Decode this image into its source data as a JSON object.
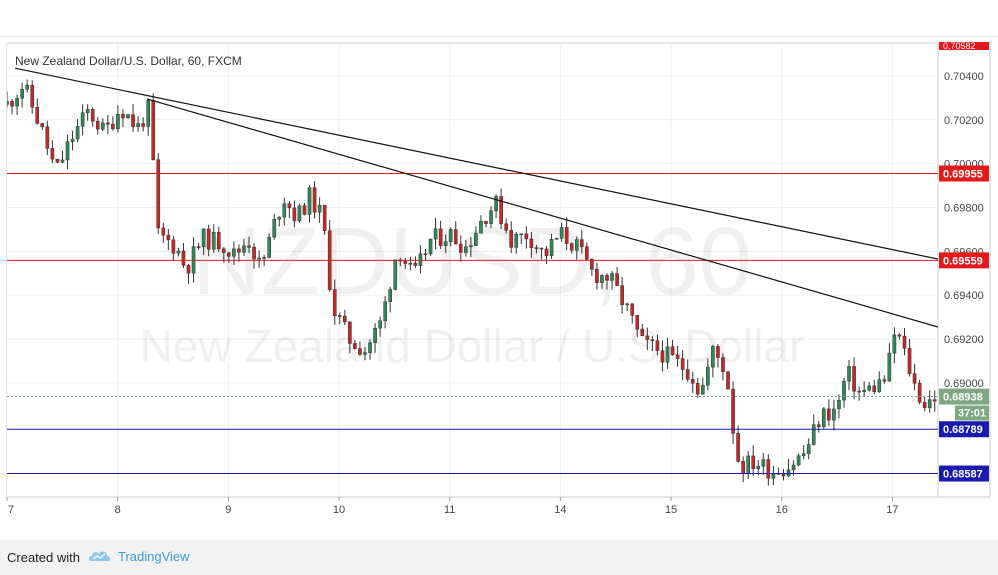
{
  "header": {
    "symbol_title": "New Zealand Dollar/U.S. Dollar, 60, FXCM"
  },
  "watermark": {
    "ticker": "NZDUSD, 60",
    "name": "New Zealand Dollar / U.S. Dollar"
  },
  "footer": {
    "created_with": "Created with",
    "brand": "TradingView",
    "brand_icon": "tradingview-cloud-icon",
    "brand_color": "#3a9bd6"
  },
  "chart_data": {
    "type": "candlestick",
    "title": "New Zealand Dollar/U.S. Dollar, 60, FXCM",
    "ylim": [
      0.6848,
      0.7055
    ],
    "xlim": [
      0,
      28.6
    ],
    "y_ticks": [
      "0.70400",
      "0.70200",
      "0.70000",
      "0.69800",
      "0.69600",
      "0.69400",
      "0.69200",
      "0.69000"
    ],
    "x_ticks": [
      {
        "x": 0,
        "label": "7"
      },
      {
        "x": 3.4,
        "label": "8"
      },
      {
        "x": 6.8,
        "label": "9"
      },
      {
        "x": 10.2,
        "label": "10"
      },
      {
        "x": 13.6,
        "label": "11"
      },
      {
        "x": 17.0,
        "label": "14"
      },
      {
        "x": 20.4,
        "label": "15"
      },
      {
        "x": 23.8,
        "label": "16"
      },
      {
        "x": 27.2,
        "label": "17"
      }
    ],
    "top_price_label": "0.70582",
    "horizontal_lines": [
      {
        "price": 0.69955,
        "label": "0.69955",
        "color": "#e31a1c"
      },
      {
        "price": 0.69559,
        "label": "0.69559",
        "color": "#e31a1c"
      },
      {
        "price": 0.68789,
        "label": "0.68789",
        "color": "#1a1ab0"
      },
      {
        "price": 0.68587,
        "label": "0.68587",
        "color": "#1a1ab0"
      }
    ],
    "current_price": {
      "price": 0.68938,
      "label": "0.68938",
      "countdown": "37:01",
      "color": "#7fa882"
    },
    "trendlines": [
      {
        "x1": 0.25,
        "y1": 0.70435,
        "x2": 28.6,
        "y2": 0.69565
      },
      {
        "x1": 4.3,
        "y1": 0.70295,
        "x2": 28.6,
        "y2": 0.69255
      }
    ],
    "candle_colors": {
      "up": "#2e8b57",
      "down": "#c62828"
    },
    "path": [
      [
        0.0,
        0.7027
      ],
      [
        0.5,
        0.7036
      ],
      [
        1.0,
        0.7018
      ],
      [
        1.5,
        0.6996
      ],
      [
        2.0,
        0.7012
      ],
      [
        2.5,
        0.7024
      ],
      [
        3.0,
        0.7014
      ],
      [
        3.5,
        0.7026
      ],
      [
        4.0,
        0.7016
      ],
      [
        4.4,
        0.7026
      ],
      [
        4.6,
        0.6968
      ],
      [
        5.2,
        0.6962
      ],
      [
        5.5,
        0.6952
      ],
      [
        6.0,
        0.6966
      ],
      [
        6.6,
        0.6964
      ],
      [
        7.0,
        0.6958
      ],
      [
        7.4,
        0.6966
      ],
      [
        7.8,
        0.6952
      ],
      [
        8.2,
        0.6972
      ],
      [
        8.5,
        0.6985
      ],
      [
        8.9,
        0.6975
      ],
      [
        9.3,
        0.6985
      ],
      [
        9.7,
        0.6975
      ],
      [
        10.0,
        0.6935
      ],
      [
        10.5,
        0.692
      ],
      [
        11.0,
        0.6915
      ],
      [
        11.5,
        0.6928
      ],
      [
        12.0,
        0.6962
      ],
      [
        12.5,
        0.6948
      ],
      [
        13.0,
        0.6965
      ],
      [
        13.6,
        0.6968
      ],
      [
        14.1,
        0.6962
      ],
      [
        14.6,
        0.6975
      ],
      [
        15.0,
        0.6982
      ],
      [
        15.5,
        0.6965
      ],
      [
        16.0,
        0.6968
      ],
      [
        16.5,
        0.6958
      ],
      [
        17.0,
        0.6968
      ],
      [
        17.5,
        0.6962
      ],
      [
        18.0,
        0.695
      ],
      [
        18.5,
        0.6948
      ],
      [
        19.0,
        0.6935
      ],
      [
        19.5,
        0.6918
      ],
      [
        20.0,
        0.6915
      ],
      [
        20.5,
        0.691
      ],
      [
        21.0,
        0.6905
      ],
      [
        21.3,
        0.6895
      ],
      [
        21.7,
        0.6915
      ],
      [
        22.1,
        0.6905
      ],
      [
        22.3,
        0.688
      ],
      [
        22.5,
        0.6862
      ],
      [
        23.0,
        0.6864
      ],
      [
        23.5,
        0.686
      ],
      [
        24.0,
        0.6862
      ],
      [
        24.5,
        0.6868
      ],
      [
        25.0,
        0.6885
      ],
      [
        25.5,
        0.6888
      ],
      [
        25.8,
        0.6905
      ],
      [
        26.2,
        0.6895
      ],
      [
        26.6,
        0.6898
      ],
      [
        27.0,
        0.6902
      ],
      [
        27.3,
        0.6925
      ],
      [
        27.6,
        0.6912
      ],
      [
        27.9,
        0.6898
      ],
      [
        28.2,
        0.689
      ],
      [
        28.5,
        0.6894
      ]
    ]
  }
}
